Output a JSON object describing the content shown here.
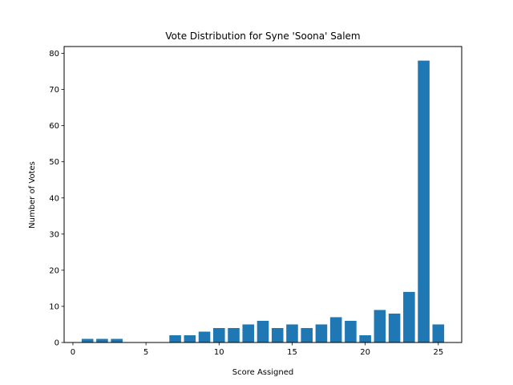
{
  "chart_data": {
    "type": "bar",
    "title": "Vote Distribution for Syne 'Soona' Salem",
    "xlabel": "Score Assigned",
    "ylabel": "Number of Votes",
    "x": [
      1,
      2,
      3,
      4,
      5,
      6,
      7,
      8,
      9,
      10,
      11,
      12,
      13,
      14,
      15,
      16,
      17,
      18,
      19,
      20,
      21,
      22,
      23,
      24,
      25
    ],
    "values": [
      1,
      1,
      1,
      0,
      0,
      0,
      2,
      2,
      3,
      4,
      4,
      5,
      6,
      4,
      5,
      4,
      5,
      7,
      6,
      2,
      9,
      8,
      14,
      78,
      5
    ],
    "xlim": [
      -0.6,
      26.6
    ],
    "ylim": [
      0,
      81.9
    ],
    "xticks": [
      0,
      5,
      10,
      15,
      20,
      25
    ],
    "yticks": [
      0,
      10,
      20,
      30,
      40,
      50,
      60,
      70,
      80
    ],
    "bar_color": "#1f77b4",
    "grid": false
  }
}
